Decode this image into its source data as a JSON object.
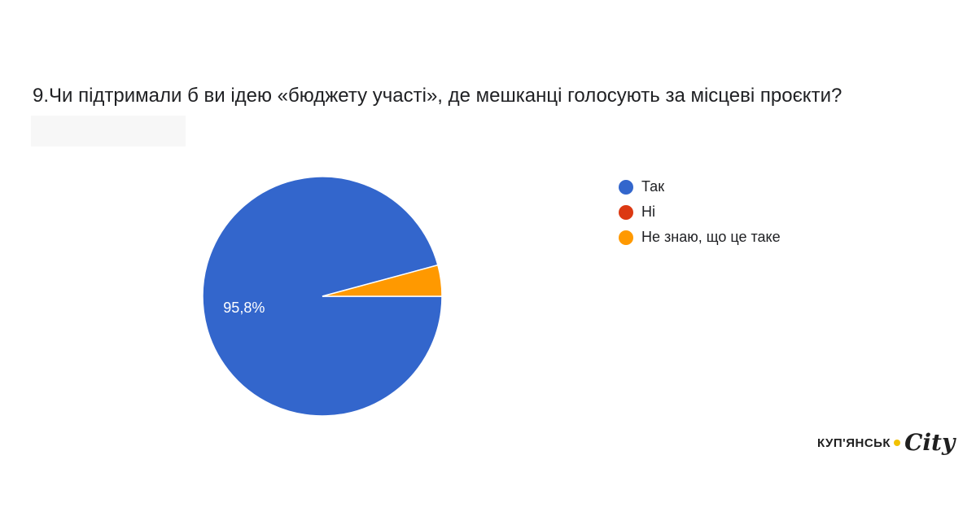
{
  "chart_data": {
    "type": "pie",
    "title": "9.Чи підтримали б ви ідею «бюджету участі», де мешканці голосують за місцеві проєкти?",
    "slices": [
      {
        "label": "Так",
        "value": 95.8,
        "color": "#3366cc",
        "data_label": "95,8%"
      },
      {
        "label": "Ні",
        "value": 0,
        "color": "#dc3912",
        "data_label": ""
      },
      {
        "label": "Не знаю, що це таке",
        "value": 4.2,
        "color": "#ff9900",
        "data_label": ""
      }
    ],
    "legend_position": "right"
  },
  "logo": {
    "word": "КУП'ЯНСЬК",
    "city": "City"
  }
}
